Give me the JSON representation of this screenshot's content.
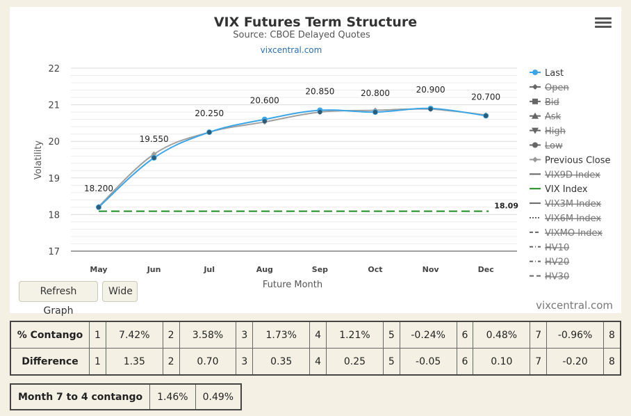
{
  "chart_data": {
    "type": "line",
    "title": "VIX Futures Term Structure",
    "subtitle": "Source: CBOE Delayed Quotes",
    "link": "vixcentral.com",
    "xlabel": "Future Month",
    "ylabel": "Volatility",
    "categories": [
      "May",
      "Jun",
      "Jul",
      "Aug",
      "Sep",
      "Oct",
      "Nov",
      "Dec"
    ],
    "ylim": [
      17,
      22
    ],
    "yticks": [
      17,
      18,
      19,
      20,
      21,
      22
    ],
    "grid": true,
    "legend_position": "right",
    "series": [
      {
        "name": "Last",
        "values": [
          18.2,
          19.55,
          20.25,
          20.6,
          20.85,
          20.8,
          20.9,
          20.7
        ],
        "labels": [
          "18.200",
          "19.550",
          "20.250",
          "20.600",
          "20.850",
          "20.800",
          "20.900",
          "20.700"
        ],
        "color": "#3aa6e8",
        "visible": true
      },
      {
        "name": "Previous Close",
        "values": [
          18.22,
          19.65,
          20.25,
          20.53,
          20.8,
          20.85,
          20.88,
          20.72
        ],
        "color": "#a0a0a0",
        "visible": true
      },
      {
        "name": "Low",
        "values": [
          18.2,
          19.55,
          20.25,
          20.55,
          20.8,
          20.8,
          20.88,
          20.7
        ],
        "color": "#2b5d78",
        "visible": true,
        "markers_only": true
      },
      {
        "name": "VIX Index",
        "value": 18.09,
        "label": "18.09",
        "color": "#1e8c1e",
        "visible": true,
        "dashed": true
      }
    ],
    "legend": [
      {
        "label": "Last",
        "enabled": true,
        "symbol": "circle",
        "color": "#3aa6e8"
      },
      {
        "label": "Open",
        "enabled": false,
        "symbol": "diamond",
        "color": "#555555"
      },
      {
        "label": "Bid",
        "enabled": false,
        "symbol": "square",
        "color": "#555555"
      },
      {
        "label": "Ask",
        "enabled": false,
        "symbol": "triangle",
        "color": "#555555"
      },
      {
        "label": "High",
        "enabled": false,
        "symbol": "triangle-down",
        "color": "#555555"
      },
      {
        "label": "Low",
        "enabled": false,
        "symbol": "circle",
        "color": "#555555"
      },
      {
        "label": "Previous Close",
        "enabled": true,
        "symbol": "diamond",
        "color": "#999999"
      },
      {
        "label": "VIX9D Index",
        "enabled": false,
        "symbol": "line",
        "color": "#666666"
      },
      {
        "label": "VIX Index",
        "enabled": true,
        "symbol": "line",
        "color": "#1e8c1e"
      },
      {
        "label": "VIX3M Index",
        "enabled": false,
        "symbol": "line",
        "color": "#666666"
      },
      {
        "label": "VIX6M Index",
        "enabled": false,
        "symbol": "dotted",
        "color": "#666666"
      },
      {
        "label": "VIXMO Index",
        "enabled": false,
        "symbol": "dashed",
        "color": "#666666"
      },
      {
        "label": "HV10",
        "enabled": false,
        "symbol": "dashdot",
        "color": "#666666"
      },
      {
        "label": "HV20",
        "enabled": false,
        "symbol": "dashdot",
        "color": "#666666"
      },
      {
        "label": "HV30",
        "enabled": false,
        "symbol": "longdash",
        "color": "#666666"
      }
    ]
  },
  "buttons": {
    "refresh": "Refresh Graph",
    "wide": "Wide"
  },
  "credit": "vixcentral.com",
  "contango_table": {
    "rows": [
      {
        "label": "% Contango",
        "cells": [
          "1",
          "7.42%",
          "2",
          "3.58%",
          "3",
          "1.73%",
          "4",
          "1.21%",
          "5",
          "-0.24%",
          "6",
          "0.48%",
          "7",
          "-0.96%",
          "8"
        ]
      },
      {
        "label": "Difference",
        "cells": [
          "1",
          "1.35",
          "2",
          "0.70",
          "3",
          "0.35",
          "4",
          "0.25",
          "5",
          "-0.05",
          "6",
          "0.10",
          "7",
          "-0.20",
          "8"
        ]
      }
    ]
  },
  "month74": {
    "label": "Month 7 to 4 contango",
    "values": [
      "1.46%",
      "0.49%"
    ]
  }
}
